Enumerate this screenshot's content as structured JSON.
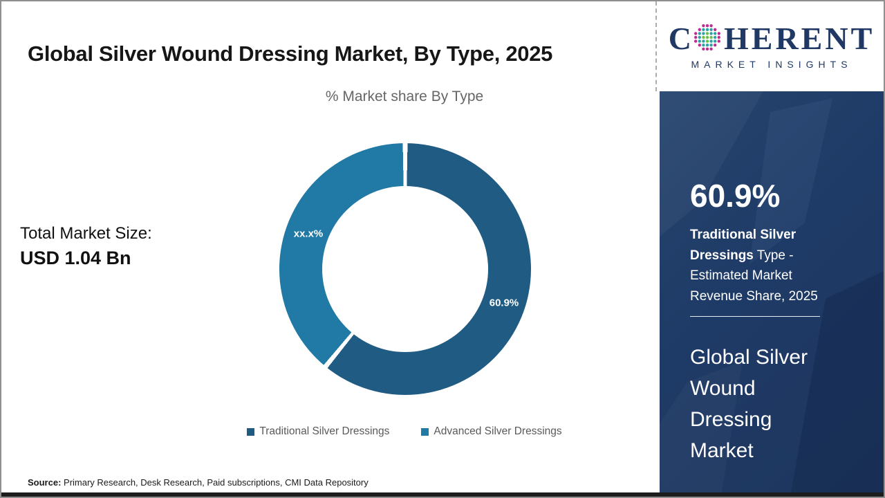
{
  "page": {
    "title": "Global Silver Wound Dressing Market, By Type, 2025",
    "total_market_label": "Total Market Size:",
    "total_market_value": "USD 1.04 Bn",
    "source_label": "Source:",
    "source_text": " Primary Research, Desk Research, Paid subscriptions, CMI Data Repository"
  },
  "chart_data": {
    "type": "pie",
    "donut": true,
    "title": "% Market share By Type",
    "legend_position": "bottom",
    "segments": [
      {
        "label": "Traditional Silver Dressings",
        "value": 60.9,
        "display": "60.9%",
        "color": "#1F5B82"
      },
      {
        "label": "Advanced Silver Dressings",
        "value": 39.1,
        "display": "xx.x%",
        "color": "#2179A6"
      }
    ]
  },
  "logo": {
    "first_letter": "C",
    "rest": "HERENT",
    "subtitle": "MARKET INSIGHTS",
    "text_color": "#1F3864",
    "globe_colors": {
      "outer": "#C02B8F",
      "mid": "#2BA3A5",
      "inner": "#6CBE45"
    }
  },
  "sidebar": {
    "background": "#1E3A66",
    "highlight_value": "60.9%",
    "highlight_bold": "Traditional Silver Dressings",
    "highlight_rest": " Type - Estimated Market Revenue Share, 2025",
    "market_name": "Global Silver Wound Dressing Market"
  }
}
